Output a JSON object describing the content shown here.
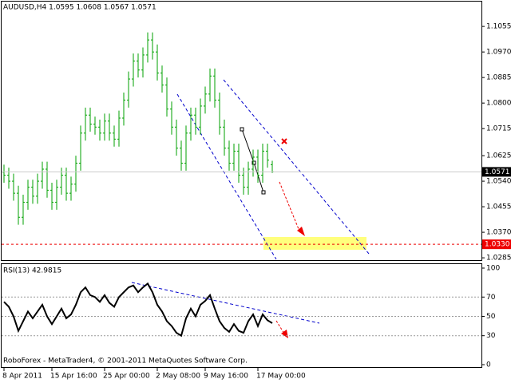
{
  "chart_data": [
    {
      "type": "ohlc",
      "title": "AUDUSD,H4  1.0595 1.0608 1.0567 1.0571",
      "color": "#00a000",
      "categories": [
        "8 Apr 2011",
        null,
        null,
        null,
        null,
        null,
        null,
        null,
        null,
        null,
        "15 Apr 16:00",
        null,
        null,
        null,
        null,
        null,
        null,
        null,
        null,
        null,
        null,
        "25 Apr 00:00",
        null,
        null,
        null,
        null,
        null,
        null,
        null,
        null,
        null,
        null,
        "2 May 08:00",
        null,
        null,
        null,
        null,
        null,
        null,
        null,
        null,
        null,
        "9 May 16:00",
        null,
        null,
        null,
        null,
        null,
        null,
        null,
        null,
        null,
        null,
        "17 May 00:00",
        null,
        null,
        null
      ],
      "open": [
        1.057,
        1.056,
        1.054,
        1.05,
        1.042,
        1.047,
        1.052,
        1.049,
        1.054,
        1.058,
        1.051,
        1.047,
        1.052,
        1.056,
        1.05,
        1.053,
        1.06,
        1.07,
        1.076,
        1.073,
        1.072,
        1.07,
        1.074,
        1.07,
        1.068,
        1.075,
        1.081,
        1.088,
        1.094,
        1.091,
        1.096,
        1.101,
        1.097,
        1.09,
        1.086,
        1.078,
        1.072,
        1.065,
        1.06,
        1.07,
        1.076,
        1.072,
        1.079,
        1.083,
        1.089,
        1.081,
        1.072,
        1.065,
        1.06,
        1.064,
        1.056,
        1.052,
        1.058,
        1.062,
        1.056,
        1.064,
        1.0595
      ],
      "high": [
        1.0595,
        1.0585,
        1.0565,
        1.0525,
        1.0495,
        1.0545,
        1.0545,
        1.0565,
        1.0605,
        1.0605,
        1.0535,
        1.0545,
        1.0585,
        1.0585,
        1.0555,
        1.0625,
        1.0725,
        1.0785,
        1.0785,
        1.0755,
        1.0745,
        1.0765,
        1.0765,
        1.0725,
        1.0775,
        1.0835,
        1.0905,
        1.0965,
        1.0965,
        1.0985,
        1.1035,
        1.1035,
        1.0995,
        1.0925,
        1.0885,
        1.0805,
        1.0745,
        1.0675,
        1.0725,
        1.0785,
        1.0785,
        1.0815,
        1.0855,
        1.0915,
        1.0915,
        1.0835,
        1.0745,
        1.0675,
        1.0665,
        1.0665,
        1.0585,
        1.0605,
        1.0645,
        1.0645,
        1.0665,
        1.0665,
        1.0608
      ],
      "low": [
        1.0535,
        1.0515,
        1.0475,
        1.0395,
        1.0395,
        1.0445,
        1.0465,
        1.0465,
        1.0515,
        1.0485,
        1.0445,
        1.0445,
        1.0495,
        1.0475,
        1.0475,
        1.0505,
        1.0575,
        1.0675,
        1.0705,
        1.0695,
        1.0675,
        1.0675,
        1.0675,
        1.0655,
        1.0655,
        1.0725,
        1.0785,
        1.0855,
        1.0885,
        1.0885,
        1.0935,
        1.0945,
        1.0875,
        1.0835,
        1.0755,
        1.0695,
        1.0625,
        1.0575,
        1.0575,
        1.0675,
        1.0695,
        1.0695,
        1.0765,
        1.0805,
        1.0785,
        1.0695,
        1.0625,
        1.0575,
        1.0575,
        1.0535,
        1.0495,
        1.0495,
        1.0555,
        1.0535,
        1.0535,
        1.0585,
        1.0567
      ],
      "close": [
        1.056,
        1.054,
        1.05,
        1.042,
        1.047,
        1.052,
        1.049,
        1.054,
        1.058,
        1.051,
        1.047,
        1.052,
        1.056,
        1.05,
        1.053,
        1.06,
        1.07,
        1.076,
        1.073,
        1.072,
        1.07,
        1.074,
        1.07,
        1.068,
        1.075,
        1.081,
        1.088,
        1.094,
        1.091,
        1.096,
        1.101,
        1.097,
        1.09,
        1.086,
        1.078,
        1.072,
        1.065,
        1.06,
        1.07,
        1.076,
        1.072,
        1.079,
        1.083,
        1.089,
        1.081,
        1.072,
        1.065,
        1.06,
        1.064,
        1.056,
        1.052,
        1.058,
        1.062,
        1.056,
        1.064,
        1.061,
        1.0571
      ],
      "ylim": [
        1.0272,
        1.1143
      ],
      "yticks": [
        1.1055,
        {
          "value": 1.097,
          "label": "1.0970"
        },
        1.0885,
        {
          "value": 1.08,
          "label": "1.0800"
        },
        1.0715,
        1.0625,
        {
          "value": 1.054,
          "label": "1.0540"
        },
        1.0455,
        {
          "value": 1.037,
          "label": "1.0370"
        },
        1.0285
      ],
      "current_price": 1.0571,
      "target_level": {
        "value": 1.033,
        "label": "1.0330"
      }
    },
    {
      "type": "line",
      "title": "RSI(13) 42.9815",
      "color": "#000000",
      "values": [
        65,
        60,
        50,
        35,
        45,
        55,
        48,
        55,
        62,
        50,
        42,
        50,
        58,
        48,
        52,
        62,
        75,
        80,
        72,
        70,
        65,
        72,
        64,
        60,
        70,
        75,
        80,
        82,
        75,
        80,
        84,
        75,
        62,
        55,
        45,
        40,
        33,
        30,
        48,
        58,
        50,
        62,
        66,
        72,
        58,
        45,
        38,
        34,
        42,
        35,
        33,
        45,
        52,
        40,
        52,
        46,
        42.9815
      ],
      "ylim": [
        0,
        100
      ],
      "yticks": [
        100,
        70,
        50,
        30,
        0
      ],
      "grid_levels": [
        70,
        50,
        30
      ]
    }
  ],
  "footer": "RoboForex - MetaTrader4, © 2001-2011 MetaQuotes Software Corp."
}
